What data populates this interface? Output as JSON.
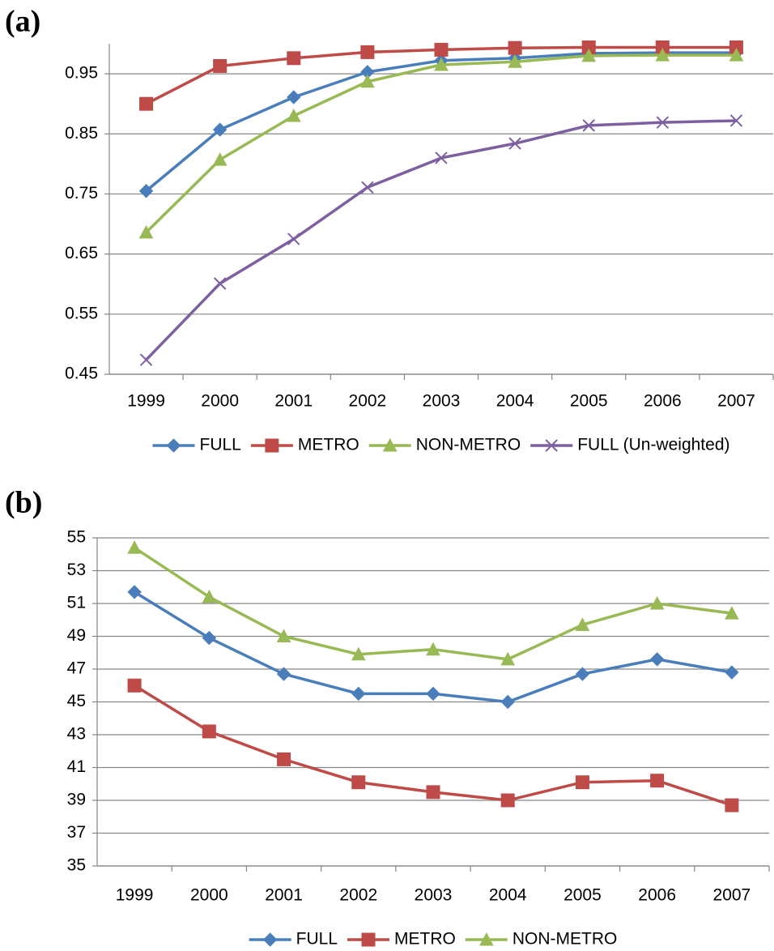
{
  "chart_data": [
    {
      "type": "line",
      "label": "(a)",
      "categories": [
        "1999",
        "2000",
        "2001",
        "2002",
        "2003",
        "2004",
        "2005",
        "2006",
        "2007"
      ],
      "ylim": [
        0.45,
        1.0
      ],
      "yticks": [
        0.45,
        0.55,
        0.65,
        0.75,
        0.85,
        0.95
      ],
      "grid": true,
      "legend": "bottom",
      "series": [
        {
          "name": "FULL",
          "color": "#4a7ebb",
          "marker": "diamond",
          "values": [
            0.755,
            0.857,
            0.911,
            0.953,
            0.972,
            0.976,
            0.984,
            0.985,
            0.985
          ]
        },
        {
          "name": "METRO",
          "color": "#be4b48",
          "marker": "square",
          "values": [
            0.9,
            0.963,
            0.976,
            0.986,
            0.99,
            0.993,
            0.994,
            0.994,
            0.994
          ]
        },
        {
          "name": "NON-METRO",
          "color": "#98b954",
          "marker": "triangle",
          "values": [
            0.686,
            0.807,
            0.88,
            0.937,
            0.965,
            0.97,
            0.98,
            0.981,
            0.981
          ]
        },
        {
          "name": "FULL (Un-weighted)",
          "color": "#7d60a0",
          "marker": "x",
          "values": [
            0.474,
            0.601,
            0.675,
            0.761,
            0.81,
            0.834,
            0.864,
            0.869,
            0.872
          ]
        }
      ]
    },
    {
      "type": "line",
      "label": "(b)",
      "categories": [
        "1999",
        "2000",
        "2001",
        "2002",
        "2003",
        "2004",
        "2005",
        "2006",
        "2007"
      ],
      "ylim": [
        35,
        55
      ],
      "yticks": [
        35,
        37,
        39,
        41,
        43,
        45,
        47,
        49,
        51,
        53,
        55
      ],
      "grid": true,
      "legend": "bottom",
      "series": [
        {
          "name": "FULL",
          "color": "#4a7ebb",
          "marker": "diamond",
          "values": [
            51.7,
            48.9,
            46.7,
            45.5,
            45.5,
            45.0,
            46.7,
            47.6,
            46.8
          ]
        },
        {
          "name": "METRO",
          "color": "#be4b48",
          "marker": "square",
          "values": [
            46.0,
            43.2,
            41.5,
            40.1,
            39.5,
            39.0,
            40.1,
            40.2,
            38.7
          ]
        },
        {
          "name": "NON-METRO",
          "color": "#98b954",
          "marker": "triangle",
          "values": [
            54.4,
            51.4,
            49.0,
            47.9,
            48.2,
            47.6,
            49.7,
            51.0,
            50.4
          ]
        }
      ]
    }
  ]
}
